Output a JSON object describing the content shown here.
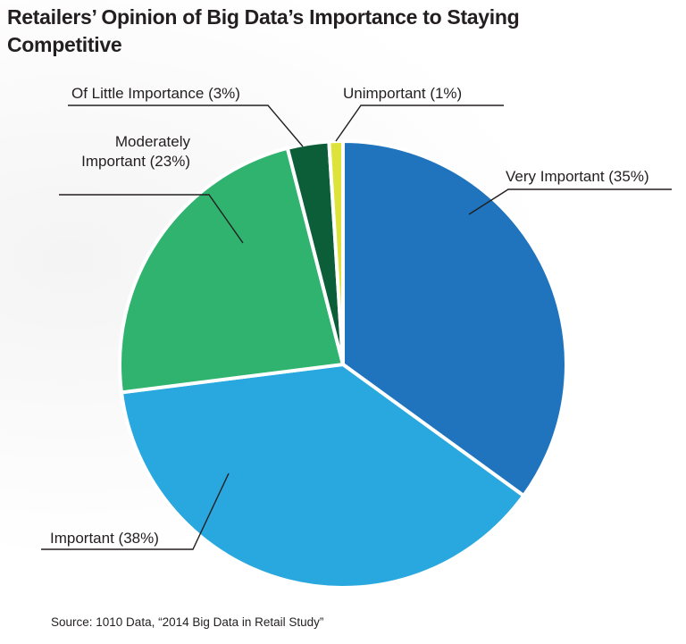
{
  "title": "Retailers’ Opinion of Big Data’s Importance to Staying Competitive",
  "source": "Source: 1010 Data, “2014 Big Data in Retail Study”",
  "chart_data": {
    "type": "pie",
    "title": "Retailers’ Opinion of Big Data’s Importance to Staying Competitive",
    "slices": [
      {
        "label": [
          "Very Important (35%)"
        ],
        "value": 35,
        "color": "#1f74bd"
      },
      {
        "label": [
          "Important (38%)"
        ],
        "value": 38,
        "color": "#29a8e0"
      },
      {
        "label": [
          "Moderately",
          "Important (23%)"
        ],
        "value": 23,
        "color": "#2fb36e"
      },
      {
        "label": [
          "Of Little Importance (3%)"
        ],
        "value": 3,
        "color": "#0b5e38"
      },
      {
        "label": [
          "Unimportant (1%)"
        ],
        "value": 1,
        "color": "#dde33a"
      }
    ]
  }
}
